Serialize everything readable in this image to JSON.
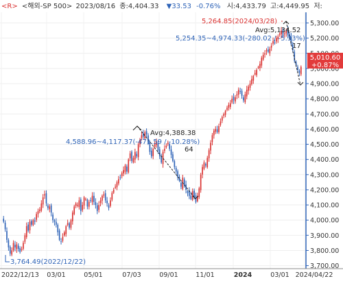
{
  "header": {
    "prefix": "<R>",
    "instrument": "<해외-SP 500>",
    "date": "2023/08/16",
    "close_label": "종:4,404.33",
    "change": "▼33.53",
    "change_pct": "-0.76%",
    "open_label": "시:4,433.79",
    "high_label": "고:4,449.95",
    "low_label": "저:"
  },
  "colors": {
    "up": "#d9302f",
    "down": "#2e63b7",
    "annotation_blue": "#2e63b7",
    "annotation_red": "#d9302f",
    "current_price_bg": "#e23b3b",
    "right_axis_line": "#2e63b7"
  },
  "annotations": {
    "high_label": "5,264.85(2024/03/28)",
    "low_label": "3,764.49(2022/12/22)",
    "avg1": "Avg:4,388.38",
    "range1": "4,588.96~4,117.37(-471.59 / -10.28%)",
    "count1": "64",
    "avg2": "Avg:5,134.52",
    "range2": "5,254.35~4,974.33(-280.02 / -5.33%)",
    "count2": "17",
    "current_price": "5,010.60",
    "current_change": "+0.87%"
  },
  "chart_data": {
    "type": "candlestick",
    "y_ticks": [
      3700,
      3800,
      3900,
      4000,
      4100,
      4200,
      4300,
      4400,
      4500,
      4600,
      4700,
      4800,
      4900,
      5000,
      5100,
      5200,
      5300
    ],
    "y_tick_labels": [
      "3,700.00",
      "3,800.00",
      "3,900.00",
      "4,000.00",
      "4,100.00",
      "4,200.00",
      "4,300.00",
      "4,400.00",
      "4,500.00",
      "4,600.00",
      "4,700.00",
      "4,800.00",
      "4,900.00",
      "5,000.00",
      "5,100.00",
      "5,200.00",
      "5,300.00"
    ],
    "x_labels": [
      "2022/12/13",
      "03/01",
      "05/01",
      "07/03",
      "09/01",
      "11/01",
      "2024",
      "03/01",
      "2024/04/22"
    ],
    "ylim": [
      3680,
      5370
    ],
    "period": [
      "2022/12/13",
      "2024/04/22"
    ],
    "key_points": {
      "low": {
        "date": "2022/12/22",
        "value": 3764.49
      },
      "high": {
        "date": "2024/03/28",
        "value": 5264.85
      },
      "last": {
        "date": "2024/04/22",
        "value": 5010.6
      }
    },
    "closes": [
      3990,
      3940,
      3870,
      3820,
      3780,
      3800,
      3850,
      3820,
      3840,
      3810,
      3790,
      3810,
      3850,
      3900,
      3960,
      3930,
      3990,
      3970,
      4000,
      3990,
      4040,
      4060,
      4070,
      4110,
      4150,
      4170,
      4110,
      4080,
      4090,
      4050,
      4000,
      3990,
      3970,
      3920,
      3870,
      3860,
      3890,
      3920,
      3960,
      3980,
      3950,
      4000,
      4050,
      4090,
      4110,
      4100,
      4130,
      4060,
      4100,
      4150,
      4140,
      4090,
      4120,
      4130,
      4160,
      4120,
      4100,
      4060,
      4100,
      4130,
      4160,
      4170,
      4130,
      4110,
      4080,
      4130,
      4180,
      4200,
      4220,
      4250,
      4270,
      4280,
      4310,
      4330,
      4360,
      4320,
      4400,
      4440,
      4390,
      4410,
      4450,
      4420,
      4500,
      4530,
      4560,
      4550,
      4580,
      4565,
      4510,
      4450,
      4420,
      4470,
      4500,
      4520,
      4460,
      4420,
      4380,
      4450,
      4470,
      4490,
      4510,
      4470,
      4430,
      4390,
      4350,
      4320,
      4280,
      4260,
      4220,
      4280,
      4230,
      4200,
      4180,
      4160,
      4140,
      4190,
      4150,
      4120,
      4160,
      4210,
      4300,
      4350,
      4380,
      4360,
      4410,
      4460,
      4510,
      4560,
      4590,
      4600,
      4580,
      4620,
      4650,
      4680,
      4700,
      4720,
      4740,
      4760,
      4770,
      4800,
      4790,
      4810,
      4830,
      4860,
      4850,
      4820,
      4790,
      4830,
      4860,
      4880,
      4900,
      4930,
      4950,
      4970,
      4990,
      5010,
      5030,
      5070,
      5090,
      5100,
      5120,
      5110,
      5130,
      5150,
      5180,
      5170,
      5200,
      5210,
      5230,
      5250,
      5220,
      5230,
      5250,
      5220,
      5200,
      5160,
      5120,
      5050,
      5020,
      4990,
      4970,
      5011
    ]
  }
}
